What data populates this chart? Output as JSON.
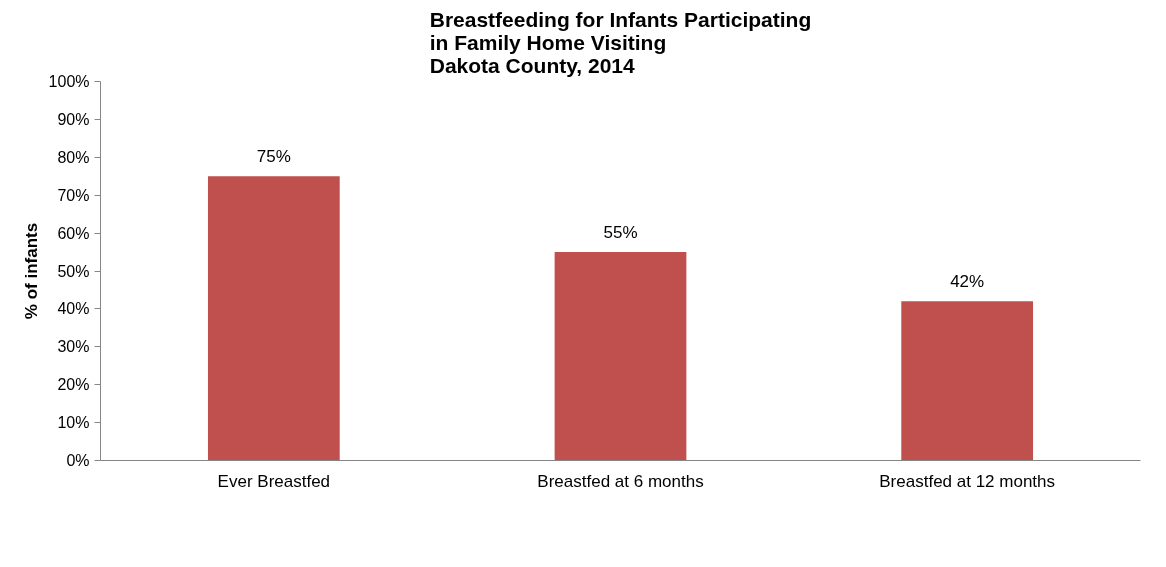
{
  "chart_data": {
    "type": "bar",
    "title": "Breastfeeding for Infants Participating\nin Family Home Visiting\nDakota County, 2014",
    "ylabel": "% of infants",
    "categories": [
      "Ever Breastfed",
      "Breastfed at 6 months",
      "Breastfed at 12 months"
    ],
    "values": [
      75,
      55,
      42
    ],
    "value_labels": [
      "75%",
      "55%",
      "42%"
    ],
    "color": "#c0504d",
    "ylim": [
      0,
      100
    ],
    "yticks": [
      {
        "value": 0,
        "label": "0%"
      },
      {
        "value": 10,
        "label": "10%"
      },
      {
        "value": 20,
        "label": "20%"
      },
      {
        "value": 30,
        "label": "30%"
      },
      {
        "value": 40,
        "label": "40%"
      },
      {
        "value": 50,
        "label": "50%"
      },
      {
        "value": 60,
        "label": "60%"
      },
      {
        "value": 70,
        "label": "70%"
      },
      {
        "value": 80,
        "label": "80%"
      },
      {
        "value": 90,
        "label": "90%"
      },
      {
        "value": 100,
        "label": "100%"
      }
    ],
    "grid": false
  }
}
